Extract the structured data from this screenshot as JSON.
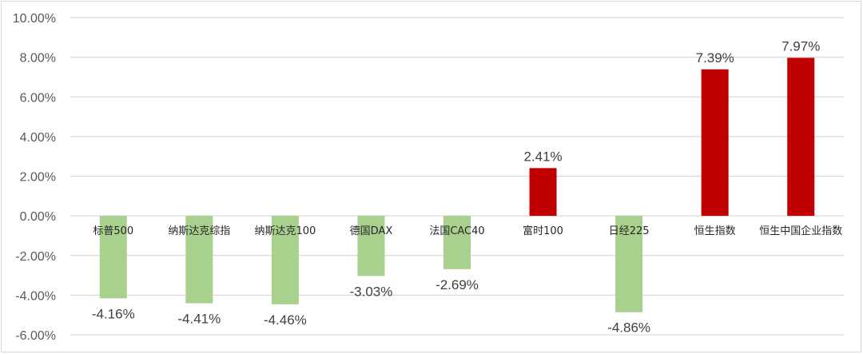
{
  "chart_data": {
    "type": "bar",
    "title": "",
    "xlabel": "",
    "ylabel": "",
    "categories": [
      "标普500",
      "纳斯达克综指",
      "纳斯达克100",
      "德国DAX",
      "法国CAC40",
      "富时100",
      "日经225",
      "恒生指数",
      "恒生中国企业指数"
    ],
    "values": [
      -4.16,
      -4.41,
      -4.46,
      -3.03,
      -2.69,
      2.41,
      -4.86,
      7.39,
      7.97
    ],
    "data_labels": [
      "-4.16%",
      "-4.41%",
      "-4.46%",
      "-3.03%",
      "-2.69%",
      "2.41%",
      "-4.86%",
      "7.39%",
      "7.97%"
    ],
    "ylim": [
      -6,
      10
    ],
    "yticks": [
      10,
      8,
      6,
      4,
      2,
      0,
      -2,
      -4,
      -6
    ],
    "ytick_labels": [
      "10.00%",
      "8.00%",
      "6.00%",
      "4.00%",
      "2.00%",
      "0.00%",
      "-2.00%",
      "-4.00%",
      "-6.00%"
    ],
    "grid": true,
    "legend": "none",
    "colors": {
      "positive": "#c00000",
      "negative": "#a9d18e",
      "grid": "#d9d9d9"
    }
  }
}
